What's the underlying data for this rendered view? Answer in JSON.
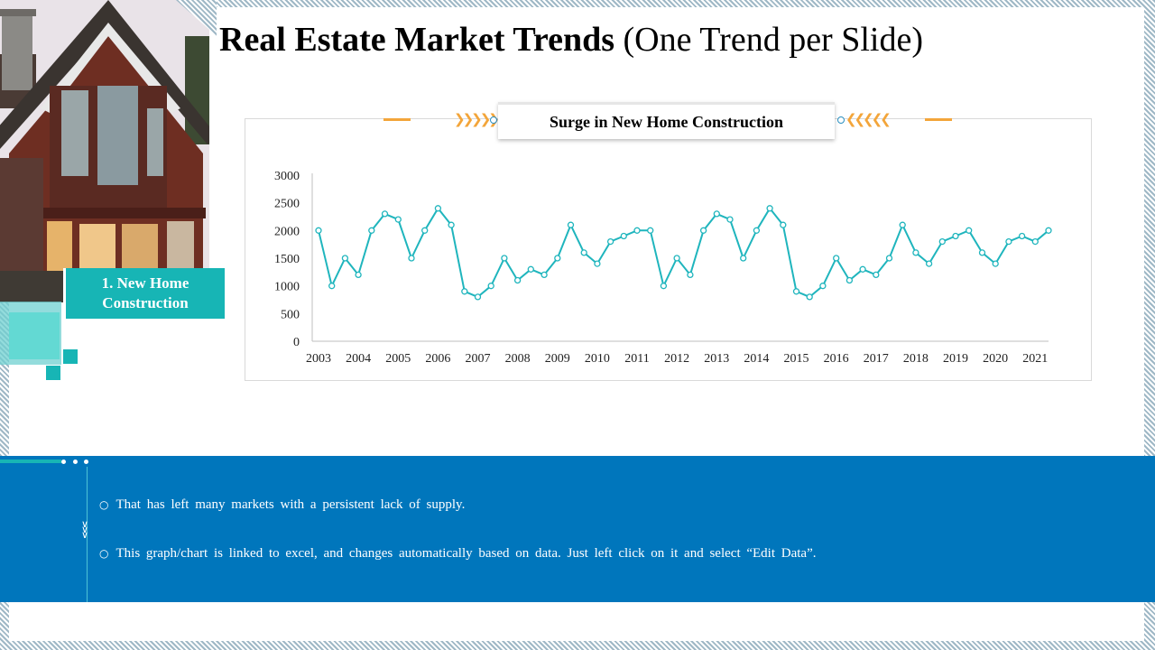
{
  "title": {
    "bold": "Real Estate Market Trends",
    "rest": "(One Trend per Slide)"
  },
  "side_label": {
    "line1": "1. New Home",
    "line2": "Construction"
  },
  "colors": {
    "teal": "#17b5b5",
    "line": "#1fb5bd",
    "blue_band": "#0076bc",
    "accent_orange": "#f3a53a"
  },
  "bullets": [
    "That has left many markets with a persistent lack of supply.",
    "This graph/chart is linked to excel, and changes automatically based on data. Just left click on it and select “Edit Data”."
  ],
  "chart_data": {
    "type": "line",
    "title": "Surge in New Home Construction",
    "xlabel": "",
    "ylabel": "",
    "ylim": [
      0,
      3000
    ],
    "yticks": [
      0,
      500,
      1000,
      1500,
      2000,
      2500,
      3000
    ],
    "year_labels": [
      "2003",
      "2004",
      "2005",
      "2006",
      "2007",
      "2008",
      "2009",
      "2010",
      "2011",
      "2012",
      "2013",
      "2014",
      "2015",
      "2016",
      "2017",
      "2018",
      "2019",
      "2020",
      "2021"
    ],
    "points_per_year": 3,
    "grid": false,
    "series": [
      {
        "name": "New Home Construction",
        "values": [
          2000,
          1000,
          1500,
          1200,
          2000,
          2300,
          2200,
          1500,
          2000,
          2400,
          2100,
          900,
          800,
          1000,
          1500,
          1100,
          1300,
          1200,
          1500,
          2100,
          1600,
          1400,
          1800,
          1900,
          2000,
          2000,
          1000,
          1500,
          1200,
          2000,
          2300,
          2200,
          1500,
          2000,
          2400,
          2100,
          900,
          800,
          1000,
          1500,
          1100,
          1300,
          1200,
          1500,
          2100,
          1600,
          1400,
          1800,
          1900,
          2000,
          1600,
          1400,
          1800,
          1900,
          1800,
          2000
        ]
      }
    ]
  }
}
